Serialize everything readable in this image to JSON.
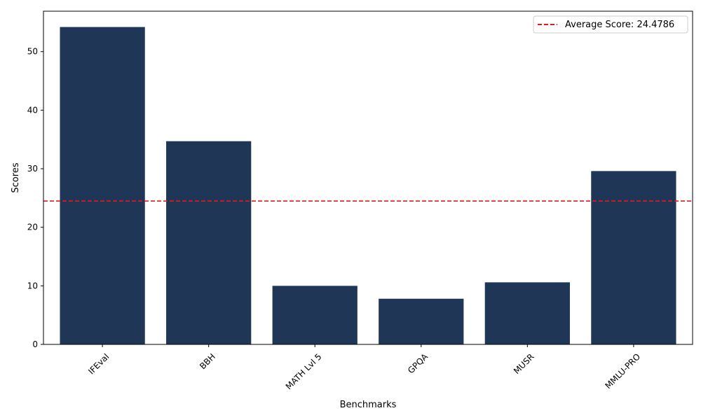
{
  "chart_data": {
    "type": "bar",
    "categories": [
      "IFEval",
      "BBH",
      "MATH Lvl 5",
      "GPQA",
      "MUSR",
      "MMLU-PRO"
    ],
    "values": [
      54.2,
      34.7,
      10.0,
      7.8,
      10.6,
      29.6
    ],
    "xlabel": "Benchmarks",
    "ylabel": "Scores",
    "ylim": [
      0,
      56.9
    ],
    "yticks": [
      0,
      10,
      20,
      30,
      40,
      50
    ],
    "average": 24.4786,
    "average_label": "Average Score: 24.4786",
    "legend_position": "top-right",
    "grid": false,
    "colors": {
      "bar": "#1f3657",
      "average_line": "#e31a1c",
      "axis": "#000000"
    }
  }
}
